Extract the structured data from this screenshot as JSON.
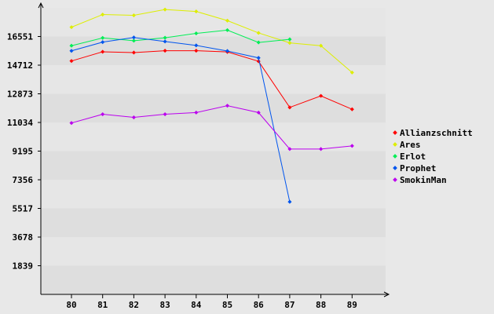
{
  "chart_data": {
    "type": "line",
    "title": "",
    "xlabel": "",
    "ylabel": "",
    "x": [
      "80",
      "81",
      "82",
      "83",
      "84",
      "85",
      "86",
      "87",
      "88",
      "89"
    ],
    "y_ticks": [
      "1839",
      "3678",
      "5517",
      "7356",
      "9195",
      "11034",
      "12873",
      "14712",
      "16551"
    ],
    "ylim": [
      0,
      18390
    ],
    "grid": "horizontal bands",
    "legend_position": "right",
    "series": [
      {
        "name": "Allianzschnitt",
        "color": "#ff0000",
        "values": [
          14980,
          15570,
          15520,
          15640,
          15640,
          15560,
          14960,
          12000,
          12740,
          11880
        ]
      },
      {
        "name": "Ares",
        "color": "#ddee00",
        "values": [
          17150,
          17960,
          17910,
          18280,
          18160,
          17570,
          16780,
          16140,
          15960,
          14240
        ]
      },
      {
        "name": "Erlot",
        "color": "#00ee55",
        "values": [
          15960,
          16460,
          16280,
          16470,
          16750,
          16960,
          16170,
          16370,
          null,
          null
        ]
      },
      {
        "name": "Prophet",
        "color": "#0055ee",
        "values": [
          15630,
          16190,
          16490,
          16230,
          15980,
          15620,
          15180,
          5940,
          null,
          null
        ]
      },
      {
        "name": "SmokinMan",
        "color": "#bb00ee",
        "values": [
          11000,
          11560,
          11360,
          11560,
          11670,
          12110,
          11670,
          9330,
          9330,
          9530
        ]
      }
    ]
  }
}
